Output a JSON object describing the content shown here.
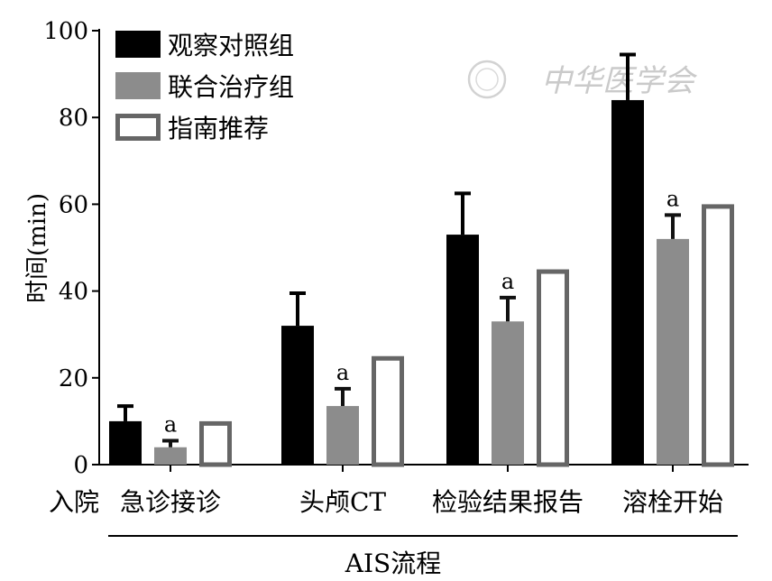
{
  "chart_data": {
    "type": "bar",
    "categories": [
      "急诊接诊",
      "头颅CT",
      "检验结果报告",
      "溶栓开始"
    ],
    "start_label": "入院",
    "series": [
      {
        "name": "观察对照组",
        "values": [
          10,
          32,
          53,
          84
        ],
        "errors": [
          3.5,
          7.5,
          9.5,
          10.5
        ],
        "color": "#000000",
        "style": "solid"
      },
      {
        "name": "联合治疗组",
        "values": [
          4,
          13.5,
          33,
          52
        ],
        "errors": [
          1.5,
          4,
          5.5,
          5.5
        ],
        "color": "#8c8c8c",
        "style": "solid",
        "significance": [
          "a",
          "a",
          "a",
          "a"
        ]
      },
      {
        "name": "指南推荐",
        "values": [
          10,
          25,
          45,
          60
        ],
        "errors": [
          0,
          0,
          0,
          0
        ],
        "color": "#666666",
        "style": "outline"
      }
    ],
    "ylabel": "时间(min)",
    "xlabel": "AIS流程",
    "ylim": [
      0,
      100
    ],
    "yticks": [
      0,
      20,
      40,
      60,
      80,
      100
    ],
    "legend": "top-left",
    "grid": false
  },
  "watermark": {
    "text": "中华医学会",
    "icon": "society-seal-icon"
  }
}
